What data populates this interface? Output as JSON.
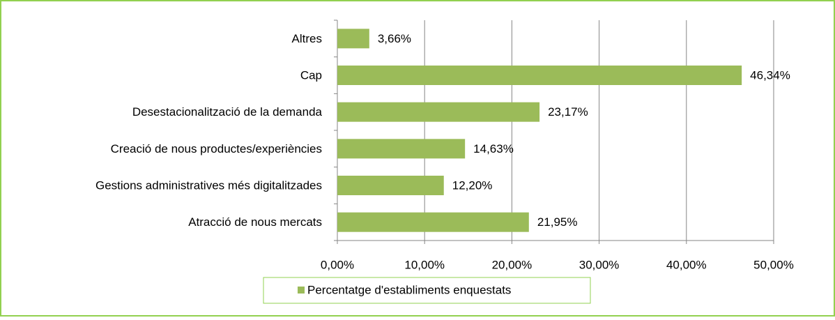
{
  "chart_data": {
    "type": "hbar",
    "categories": [
      "Altres",
      "Cap",
      "Desestacionalització de la demanda",
      "Creació de nous productes/experiències",
      "Gestions administratives més digitalitzades",
      "Atracció de nous mercats"
    ],
    "series": [
      {
        "name": "Percentatge d'establiments enquestats",
        "color": "#9bbb59",
        "values": [
          3.66,
          46.34,
          23.17,
          14.63,
          12.2,
          21.95
        ],
        "value_labels": [
          "3,66%",
          "46,34%",
          "23,17%",
          "14,63%",
          "12,20%",
          "21,95%"
        ]
      }
    ],
    "xlim": [
      0,
      50
    ],
    "xticks": [
      {
        "value": 0,
        "label": "0,00%"
      },
      {
        "value": 10,
        "label": "10,00%"
      },
      {
        "value": 20,
        "label": "20,00%"
      },
      {
        "value": 30,
        "label": "30,00%"
      },
      {
        "value": 40,
        "label": "40,00%"
      },
      {
        "value": 50,
        "label": "50,00%"
      }
    ],
    "grid": true,
    "legend": "bottom"
  }
}
